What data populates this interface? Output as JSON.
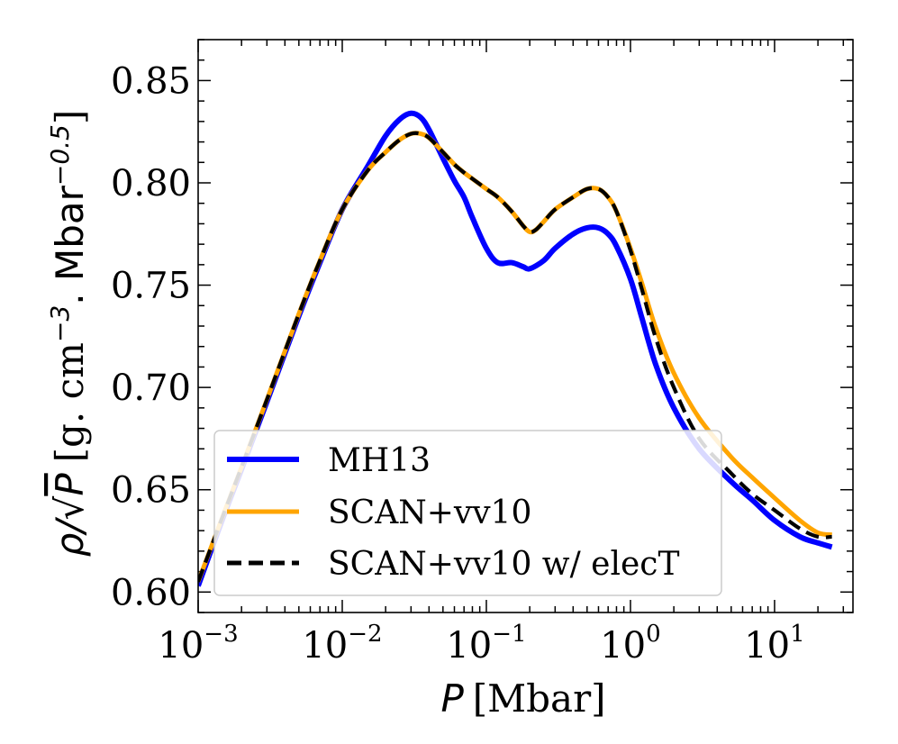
{
  "chart_data": {
    "type": "line",
    "title": "",
    "xlabel": {
      "symbol": "P",
      "unit": "[Mbar]"
    },
    "ylabel": {
      "prefix": "ρ/",
      "sqrt_symbol": "P",
      "unit_pre": "[g. cm",
      "unit_exp1": "−3",
      "unit_mid": ". Mbar",
      "unit_exp2": "−0.5",
      "unit_post": "]"
    },
    "xscale": "log",
    "xlim": [
      0.001,
      35
    ],
    "ylim": [
      0.59,
      0.87
    ],
    "x_ticks": [
      {
        "value": 0.001,
        "base": "10",
        "exp": "−3"
      },
      {
        "value": 0.01,
        "base": "10",
        "exp": "−2"
      },
      {
        "value": 0.1,
        "base": "10",
        "exp": "−1"
      },
      {
        "value": 1,
        "base": "10",
        "exp": "0"
      },
      {
        "value": 10,
        "base": "10",
        "exp": "1"
      }
    ],
    "y_ticks": [
      {
        "value": 0.6,
        "label": "0.60"
      },
      {
        "value": 0.65,
        "label": "0.65"
      },
      {
        "value": 0.7,
        "label": "0.70"
      },
      {
        "value": 0.75,
        "label": "0.75"
      },
      {
        "value": 0.8,
        "label": "0.80"
      },
      {
        "value": 0.85,
        "label": "0.85"
      }
    ],
    "legend_position": "lower-left",
    "series": [
      {
        "name": "MH13",
        "color": "#0000ff",
        "style": "solid",
        "x": [
          0.001,
          0.0015,
          0.002,
          0.003,
          0.005,
          0.007,
          0.01,
          0.015,
          0.02,
          0.025,
          0.03,
          0.035,
          0.04,
          0.05,
          0.06,
          0.07,
          0.08,
          0.1,
          0.12,
          0.15,
          0.18,
          0.2,
          0.25,
          0.3,
          0.4,
          0.5,
          0.6,
          0.7,
          0.8,
          1.0,
          1.2,
          1.5,
          2,
          3,
          5,
          7,
          10,
          15,
          20,
          25
        ],
        "y": [
          0.603,
          0.637,
          0.66,
          0.693,
          0.735,
          0.761,
          0.787,
          0.808,
          0.823,
          0.831,
          0.834,
          0.832,
          0.826,
          0.812,
          0.801,
          0.793,
          0.783,
          0.768,
          0.761,
          0.761,
          0.759,
          0.758,
          0.762,
          0.768,
          0.775,
          0.778,
          0.778,
          0.775,
          0.769,
          0.753,
          0.734,
          0.711,
          0.69,
          0.67,
          0.654,
          0.645,
          0.635,
          0.627,
          0.624,
          0.622
        ]
      },
      {
        "name": "SCAN+vv10",
        "color": "#ffa500",
        "style": "solid",
        "x": [
          0.001,
          0.0015,
          0.002,
          0.003,
          0.005,
          0.007,
          0.01,
          0.015,
          0.02,
          0.025,
          0.03,
          0.035,
          0.04,
          0.05,
          0.06,
          0.07,
          0.08,
          0.1,
          0.12,
          0.15,
          0.18,
          0.2,
          0.22,
          0.25,
          0.3,
          0.4,
          0.5,
          0.6,
          0.7,
          0.8,
          1.0,
          1.2,
          1.5,
          2,
          3,
          5,
          7,
          10,
          15,
          20,
          25
        ],
        "y": [
          0.605,
          0.638,
          0.661,
          0.694,
          0.736,
          0.762,
          0.787,
          0.806,
          0.815,
          0.821,
          0.824,
          0.824,
          0.822,
          0.815,
          0.809,
          0.805,
          0.802,
          0.797,
          0.793,
          0.786,
          0.779,
          0.776,
          0.777,
          0.781,
          0.787,
          0.793,
          0.797,
          0.797,
          0.793,
          0.786,
          0.768,
          0.751,
          0.729,
          0.707,
          0.685,
          0.666,
          0.656,
          0.646,
          0.635,
          0.629,
          0.628
        ]
      },
      {
        "name": "SCAN+vv10 w/ elecT",
        "color": "#000000",
        "style": "dashed",
        "x": [
          0.001,
          0.0015,
          0.002,
          0.003,
          0.005,
          0.007,
          0.01,
          0.015,
          0.02,
          0.025,
          0.03,
          0.035,
          0.04,
          0.05,
          0.06,
          0.07,
          0.08,
          0.1,
          0.12,
          0.15,
          0.18,
          0.2,
          0.22,
          0.25,
          0.3,
          0.4,
          0.5,
          0.6,
          0.7,
          0.8,
          1.0,
          1.2,
          1.5,
          2,
          3,
          5,
          7,
          10,
          15,
          20,
          25
        ],
        "y": [
          0.605,
          0.638,
          0.661,
          0.694,
          0.736,
          0.762,
          0.787,
          0.806,
          0.815,
          0.821,
          0.824,
          0.824,
          0.822,
          0.815,
          0.809,
          0.805,
          0.802,
          0.797,
          0.793,
          0.786,
          0.779,
          0.776,
          0.777,
          0.781,
          0.787,
          0.793,
          0.797,
          0.797,
          0.793,
          0.786,
          0.767,
          0.748,
          0.724,
          0.7,
          0.675,
          0.658,
          0.648,
          0.64,
          0.631,
          0.627,
          0.627
        ]
      }
    ]
  }
}
